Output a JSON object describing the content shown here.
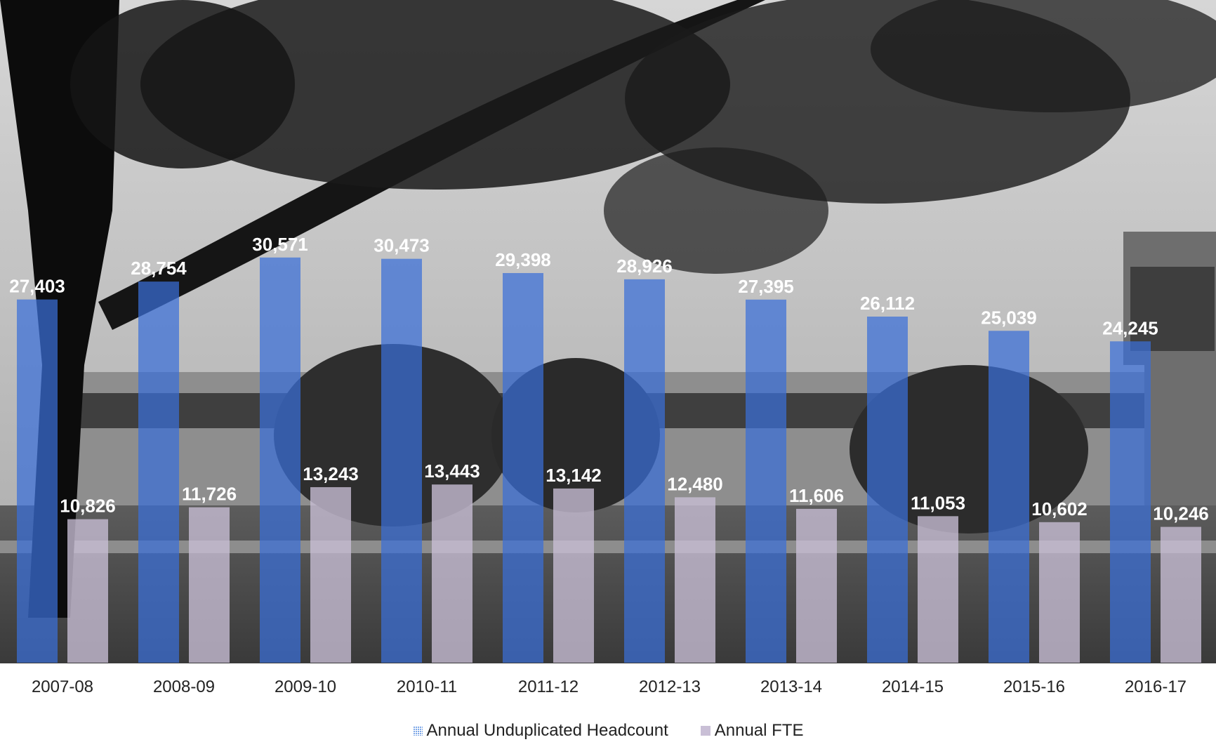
{
  "chart_data": {
    "type": "bar",
    "categories": [
      "2007-08",
      "2008-09",
      "2009-10",
      "2010-11",
      "2011-12",
      "2012-13",
      "2013-14",
      "2014-15",
      "2015-16",
      "2016-17"
    ],
    "series": [
      {
        "name": "Annual Unduplicated Headcount",
        "color": "#3a6fd8",
        "values": [
          27403,
          28754,
          30571,
          30473,
          29398,
          28926,
          27395,
          26112,
          25039,
          24245
        ],
        "labels": [
          "27,403",
          "28,754",
          "30,571",
          "30,473",
          "29,398",
          "28,926",
          "27,395",
          "26,112",
          "25,039",
          "24,245"
        ]
      },
      {
        "name": "Annual FTE",
        "color": "#c9bfd6",
        "values": [
          10826,
          11726,
          13243,
          13443,
          13142,
          12480,
          11606,
          11053,
          10602,
          10246
        ],
        "labels": [
          "10,826",
          "11,726",
          "13,243",
          "13,443",
          "13,142",
          "12,480",
          "11,606",
          "11,053",
          "10,602",
          "10,246"
        ]
      }
    ],
    "title": "",
    "xlabel": "",
    "ylabel": "",
    "ylim": [
      0,
      50000
    ],
    "grid": false,
    "legend_position": "bottom",
    "data_labels": true,
    "background": "monochrome campus photograph with trees"
  }
}
